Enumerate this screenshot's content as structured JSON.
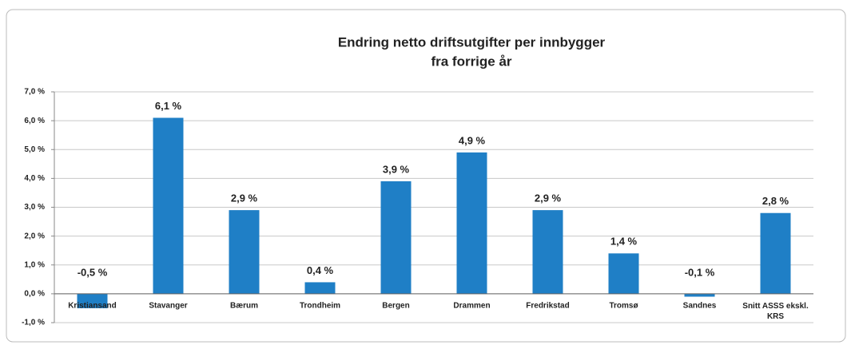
{
  "chart_data": {
    "type": "bar",
    "title": [
      "Endring netto driftsutgifter per innbygger",
      "fra forrige år"
    ],
    "categories": [
      "Kristiansand",
      "Stavanger",
      "Bærum",
      "Trondheim",
      "Bergen",
      "Drammen",
      "Fredrikstad",
      "Tromsø",
      "Sandnes",
      "Snitt ASSS ekskl. KRS"
    ],
    "values": [
      -0.5,
      6.1,
      2.9,
      0.4,
      3.9,
      4.9,
      2.9,
      1.4,
      -0.1,
      2.8
    ],
    "value_labels": [
      "-0,5 %",
      "6,1 %",
      "2,9 %",
      "0,4 %",
      "3,9 %",
      "4,9 %",
      "2,9 %",
      "1,4 %",
      "-0,1 %",
      "2,8 %"
    ],
    "color": "#1f7fc6",
    "ylim": [
      -1,
      7
    ],
    "yticks": [
      {
        "value": -1,
        "label": "-1,0 %"
      },
      {
        "value": 0,
        "label": "0,0 %"
      },
      {
        "value": 1,
        "label": "1,0 %"
      },
      {
        "value": 2,
        "label": "2,0 %"
      },
      {
        "value": 3,
        "label": "3,0 %"
      },
      {
        "value": 4,
        "label": "4,0 %"
      },
      {
        "value": 5,
        "label": "5,0 %"
      },
      {
        "value": 6,
        "label": "6,0 %"
      },
      {
        "value": 7,
        "label": "7,0 %"
      }
    ],
    "grid": true
  }
}
